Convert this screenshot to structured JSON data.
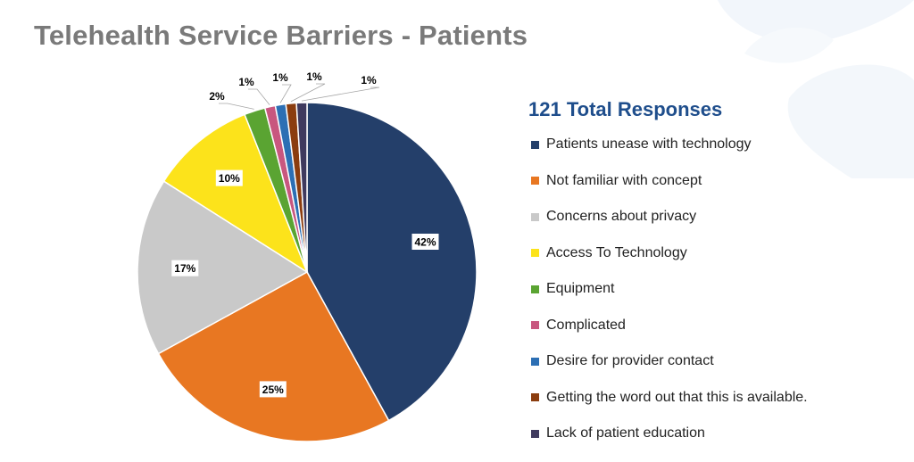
{
  "page": {
    "title": "Telehealth Service Barriers - Patients"
  },
  "chart_data": {
    "type": "pie",
    "title": "Telehealth Service Barriers - Patients",
    "subtitle": "121 Total Responses",
    "legend_position": "right",
    "data_label_format": "percent",
    "slices": [
      {
        "label": "Patients unease with technology",
        "value": 42,
        "display": "42%",
        "color": "#243f6a"
      },
      {
        "label": "Not familiar with concept",
        "value": 25,
        "display": "25%",
        "color": "#e87722"
      },
      {
        "label": "Concerns about privacy",
        "value": 17,
        "display": "17%",
        "color": "#c9c9c9"
      },
      {
        "label": "Access To Technology",
        "value": 10,
        "display": "10%",
        "color": "#fce31b"
      },
      {
        "label": "Equipment",
        "value": 2,
        "display": "2%",
        "color": "#5aa432"
      },
      {
        "label": "Complicated",
        "value": 1,
        "display": "1%",
        "color": "#c8577f"
      },
      {
        "label": "Desire for provider contact",
        "value": 1,
        "display": "1%",
        "color": "#2c6fb4"
      },
      {
        "label": "Getting the word out that this is available.",
        "value": 1,
        "display": "1%",
        "color": "#8b3d0f"
      },
      {
        "label": "Lack of patient education",
        "value": 1,
        "display": "1%",
        "color": "#3f3a5e"
      }
    ]
  }
}
